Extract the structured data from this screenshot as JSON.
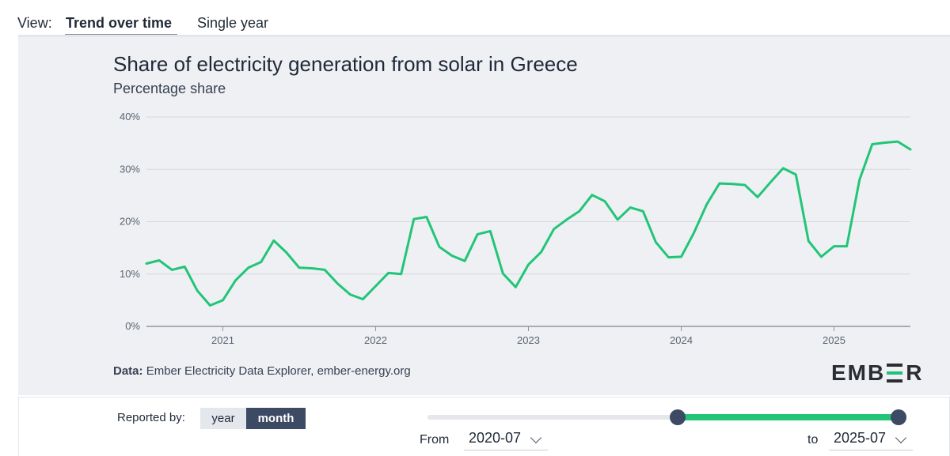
{
  "view": {
    "label": "View:",
    "tabs": [
      {
        "label": "Trend over time",
        "active": true
      },
      {
        "label": "Single year",
        "active": false
      }
    ]
  },
  "chart_data": {
    "type": "line",
    "title": "Share of electricity generation from solar in Greece",
    "subtitle": "Percentage share",
    "xlabel": "",
    "ylabel": "",
    "ylim": [
      0,
      40
    ],
    "yticks": [
      0,
      10,
      20,
      30,
      40
    ],
    "ytick_labels": [
      "0%",
      "10%",
      "20%",
      "30%",
      "40%"
    ],
    "xlim": [
      "2020-07",
      "2025-07"
    ],
    "xticks": [
      "2021-01",
      "2022-01",
      "2023-01",
      "2024-01",
      "2025-01"
    ],
    "xtick_labels": [
      "2021",
      "2022",
      "2023",
      "2024",
      "2025"
    ],
    "grid": true,
    "line_color": "#22c577",
    "series": [
      {
        "x": [
          "2020-07",
          "2020-08",
          "2020-09",
          "2020-10",
          "2020-11",
          "2020-12",
          "2021-01",
          "2021-02",
          "2021-03",
          "2021-04",
          "2021-05",
          "2021-06",
          "2021-07",
          "2021-08",
          "2021-09",
          "2021-10",
          "2021-11",
          "2021-12",
          "2022-01",
          "2022-02",
          "2022-03",
          "2022-04",
          "2022-05",
          "2022-06",
          "2022-07",
          "2022-08",
          "2022-09",
          "2022-10",
          "2022-11",
          "2022-12",
          "2023-01",
          "2023-02",
          "2023-03",
          "2023-04",
          "2023-05",
          "2023-06",
          "2023-07",
          "2023-08",
          "2023-09",
          "2023-10",
          "2023-11",
          "2023-12",
          "2024-01",
          "2024-02",
          "2024-03",
          "2024-04",
          "2024-05",
          "2024-06",
          "2024-07",
          "2024-08",
          "2024-09",
          "2024-10",
          "2024-11",
          "2024-12",
          "2025-01",
          "2025-02",
          "2025-03",
          "2025-04",
          "2025-05",
          "2025-06",
          "2025-07"
        ],
        "values": [
          12.0,
          12.6,
          10.8,
          11.4,
          6.8,
          4.0,
          5.0,
          8.8,
          11.2,
          12.3,
          16.4,
          14.1,
          11.2,
          11.1,
          10.8,
          8.2,
          6.1,
          5.2,
          7.7,
          10.2,
          10.0,
          20.5,
          20.9,
          15.2,
          13.5,
          12.5,
          17.6,
          18.2,
          10.1,
          7.5,
          11.8,
          14.2,
          18.6,
          20.4,
          22.0,
          25.1,
          23.9,
          20.4,
          22.7,
          22.0,
          16.1,
          13.2,
          13.3,
          17.9,
          23.3,
          27.3,
          27.2,
          27.0,
          24.7,
          27.5,
          30.2,
          29.0,
          16.3,
          13.3,
          15.3,
          15.3,
          28.0,
          34.8,
          35.1,
          35.3,
          33.8
        ]
      }
    ]
  },
  "source": {
    "prefix": "Data:",
    "text": "Ember Electricity Data Explorer, ember-energy.org"
  },
  "logo": {
    "left": "EMB",
    "right": "R"
  },
  "controls": {
    "reported_label": "Reported by:",
    "options": [
      {
        "label": "year",
        "active": false
      },
      {
        "label": "month",
        "active": true
      }
    ],
    "range": {
      "from_label": "From",
      "from_value": "2020-07",
      "to_label": "to",
      "to_value": "2025-07",
      "selected_start_fraction": 0.53,
      "selected_end_fraction": 1.0
    },
    "accent_color": "#22c577",
    "handle_color": "#3c4a63"
  }
}
